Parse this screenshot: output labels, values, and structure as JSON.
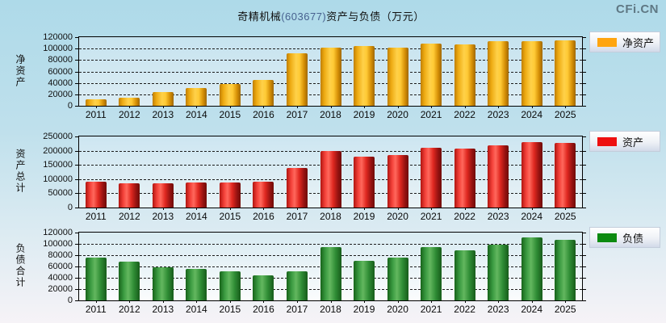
{
  "header": {
    "title_company": "奇精机械",
    "title_code": "(603677)",
    "title_rest": "资产与负债（万元）",
    "watermark": "CFi.CN"
  },
  "chart_data": [
    {
      "type": "bar",
      "name": "net-assets",
      "ylabel": "净资产",
      "legend": "净资产",
      "color": "#FFA50F",
      "legend_position": "right",
      "grid": true,
      "categories": [
        "2011",
        "2012",
        "2013",
        "2014",
        "2015",
        "2016",
        "2017",
        "2018",
        "2019",
        "2020",
        "2021",
        "2022",
        "2023",
        "2024",
        "2025"
      ],
      "values": [
        11000,
        14000,
        24000,
        31000,
        38000,
        45000,
        92000,
        102000,
        105000,
        102000,
        109000,
        108000,
        113000,
        113000,
        114000
      ],
      "ylim": [
        0,
        120000
      ],
      "ytick_step": 20000,
      "yticks": [
        "0",
        "20000",
        "40000",
        "60000",
        "80000",
        "100000",
        "120000"
      ]
    },
    {
      "type": "bar",
      "name": "total-assets",
      "ylabel": "资产总计",
      "legend": "资产",
      "color": "#EE0F0F",
      "legend_position": "right",
      "grid": true,
      "categories": [
        "2011",
        "2012",
        "2013",
        "2014",
        "2015",
        "2016",
        "2017",
        "2018",
        "2019",
        "2020",
        "2021",
        "2022",
        "2023",
        "2024",
        "2025"
      ],
      "values": [
        90000,
        85000,
        84000,
        88000,
        87000,
        90000,
        140000,
        200000,
        180000,
        185000,
        210000,
        207000,
        218000,
        231000,
        228000
      ],
      "ylim": [
        0,
        250000
      ],
      "ytick_step": 50000,
      "yticks": [
        "0",
        "50000",
        "100000",
        "150000",
        "200000",
        "250000"
      ]
    },
    {
      "type": "bar",
      "name": "total-liabilities",
      "ylabel": "负债合计",
      "legend": "负债",
      "color": "#0C8A10",
      "legend_position": "right",
      "grid": true,
      "categories": [
        "2011",
        "2012",
        "2013",
        "2014",
        "2015",
        "2016",
        "2017",
        "2018",
        "2019",
        "2020",
        "2021",
        "2022",
        "2023",
        "2024",
        "2025"
      ],
      "values": [
        76000,
        68000,
        58000,
        56000,
        51000,
        45000,
        51000,
        95000,
        70000,
        76000,
        94000,
        89000,
        98000,
        111000,
        107000
      ],
      "ylim": [
        0,
        120000
      ],
      "ytick_step": 20000,
      "yticks": [
        "0",
        "20000",
        "40000",
        "60000",
        "80000",
        "100000",
        "120000"
      ]
    }
  ]
}
